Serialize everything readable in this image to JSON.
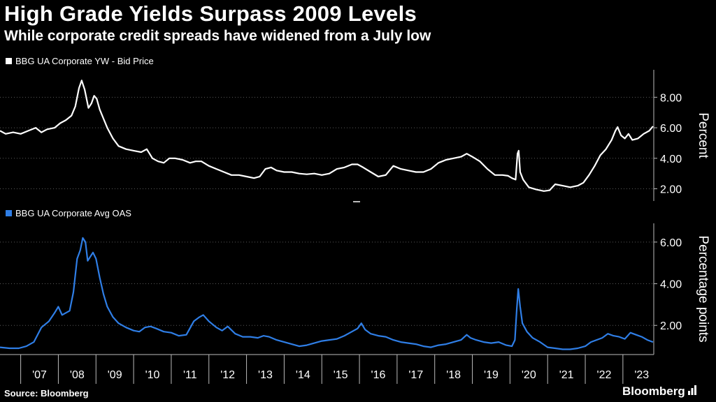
{
  "header": {
    "title": "High Grade Yields Surpass 2009 Levels",
    "subtitle": "While corporate credit spreads have widened from a July low"
  },
  "footer": {
    "source": "Source: Bloomberg",
    "brand": "Bloomberg"
  },
  "colors": {
    "background": "#000000",
    "series1": "#ffffff",
    "series2": "#2f7ee6",
    "grid": "#5a5a5a",
    "text": "#ffffff"
  },
  "chart_data": {
    "type": "line",
    "x_ticks": [
      "'07",
      "'08",
      "'09",
      "'10",
      "'11",
      "'12",
      "'13",
      "'14",
      "'15",
      "'16",
      "'17",
      "'18",
      "'19",
      "'20",
      "'21",
      "'22",
      "'23"
    ],
    "x_range": [
      2006.45,
      2023.82
    ],
    "panels": [
      {
        "legend": "BBG UA Corporate YW - Bid Price",
        "ylabel": "Percent",
        "ylim": [
          1.2,
          9.8
        ],
        "yticks": [
          2,
          4,
          6,
          8
        ],
        "ytick_labels": [
          "2.00",
          "4.00",
          "6.00",
          "8.00"
        ],
        "color": "#ffffff",
        "points": [
          [
            2006.45,
            5.8
          ],
          [
            2006.6,
            5.6
          ],
          [
            2006.8,
            5.7
          ],
          [
            2007.0,
            5.6
          ],
          [
            2007.2,
            5.8
          ],
          [
            2007.4,
            6.0
          ],
          [
            2007.55,
            5.7
          ],
          [
            2007.7,
            5.9
          ],
          [
            2007.9,
            6.0
          ],
          [
            2008.05,
            6.3
          ],
          [
            2008.2,
            6.5
          ],
          [
            2008.35,
            6.8
          ],
          [
            2008.45,
            7.4
          ],
          [
            2008.55,
            8.6
          ],
          [
            2008.62,
            9.1
          ],
          [
            2008.7,
            8.5
          ],
          [
            2008.8,
            7.3
          ],
          [
            2008.88,
            7.6
          ],
          [
            2008.95,
            8.1
          ],
          [
            2009.02,
            7.9
          ],
          [
            2009.1,
            7.2
          ],
          [
            2009.2,
            6.6
          ],
          [
            2009.3,
            6.0
          ],
          [
            2009.45,
            5.3
          ],
          [
            2009.6,
            4.8
          ],
          [
            2009.8,
            4.6
          ],
          [
            2010.0,
            4.5
          ],
          [
            2010.2,
            4.4
          ],
          [
            2010.35,
            4.6
          ],
          [
            2010.5,
            4.0
          ],
          [
            2010.65,
            3.8
          ],
          [
            2010.8,
            3.7
          ],
          [
            2010.95,
            4.0
          ],
          [
            2011.1,
            4.0
          ],
          [
            2011.3,
            3.9
          ],
          [
            2011.5,
            3.7
          ],
          [
            2011.65,
            3.8
          ],
          [
            2011.8,
            3.8
          ],
          [
            2012.0,
            3.5
          ],
          [
            2012.2,
            3.3
          ],
          [
            2012.4,
            3.1
          ],
          [
            2012.6,
            2.9
          ],
          [
            2012.8,
            2.9
          ],
          [
            2013.0,
            2.8
          ],
          [
            2013.2,
            2.7
          ],
          [
            2013.35,
            2.8
          ],
          [
            2013.5,
            3.3
          ],
          [
            2013.65,
            3.4
          ],
          [
            2013.8,
            3.2
          ],
          [
            2014.0,
            3.1
          ],
          [
            2014.2,
            3.1
          ],
          [
            2014.4,
            3.0
          ],
          [
            2014.6,
            2.95
          ],
          [
            2014.8,
            3.0
          ],
          [
            2015.0,
            2.9
          ],
          [
            2015.2,
            3.0
          ],
          [
            2015.4,
            3.3
          ],
          [
            2015.6,
            3.4
          ],
          [
            2015.8,
            3.6
          ],
          [
            2015.95,
            3.6
          ],
          [
            2016.1,
            3.4
          ],
          [
            2016.3,
            3.1
          ],
          [
            2016.5,
            2.8
          ],
          [
            2016.7,
            2.9
          ],
          [
            2016.9,
            3.5
          ],
          [
            2017.1,
            3.3
          ],
          [
            2017.3,
            3.2
          ],
          [
            2017.5,
            3.1
          ],
          [
            2017.7,
            3.1
          ],
          [
            2017.9,
            3.3
          ],
          [
            2018.1,
            3.7
          ],
          [
            2018.3,
            3.9
          ],
          [
            2018.5,
            4.0
          ],
          [
            2018.7,
            4.1
          ],
          [
            2018.85,
            4.3
          ],
          [
            2019.0,
            4.1
          ],
          [
            2019.2,
            3.8
          ],
          [
            2019.4,
            3.3
          ],
          [
            2019.6,
            2.9
          ],
          [
            2019.8,
            2.9
          ],
          [
            2019.95,
            2.85
          ],
          [
            2020.05,
            2.7
          ],
          [
            2020.15,
            2.6
          ],
          [
            2020.2,
            4.3
          ],
          [
            2020.23,
            4.5
          ],
          [
            2020.27,
            3.1
          ],
          [
            2020.35,
            2.6
          ],
          [
            2020.5,
            2.1
          ],
          [
            2020.7,
            1.95
          ],
          [
            2020.9,
            1.85
          ],
          [
            2021.05,
            1.9
          ],
          [
            2021.2,
            2.3
          ],
          [
            2021.4,
            2.2
          ],
          [
            2021.6,
            2.1
          ],
          [
            2021.8,
            2.2
          ],
          [
            2021.95,
            2.4
          ],
          [
            2022.1,
            2.9
          ],
          [
            2022.25,
            3.5
          ],
          [
            2022.4,
            4.2
          ],
          [
            2022.55,
            4.6
          ],
          [
            2022.7,
            5.2
          ],
          [
            2022.8,
            5.8
          ],
          [
            2022.86,
            6.05
          ],
          [
            2022.95,
            5.5
          ],
          [
            2023.05,
            5.3
          ],
          [
            2023.15,
            5.6
          ],
          [
            2023.25,
            5.2
          ],
          [
            2023.4,
            5.3
          ],
          [
            2023.55,
            5.6
          ],
          [
            2023.7,
            5.8
          ],
          [
            2023.8,
            6.1
          ]
        ]
      },
      {
        "legend": "BBG UA Corporate Avg OAS",
        "ylabel": "Percentage points",
        "ylim": [
          0.6,
          6.9
        ],
        "yticks": [
          2,
          4,
          6
        ],
        "ytick_labels": [
          "2.00",
          "4.00",
          "6.00"
        ],
        "color": "#2f7ee6",
        "points": [
          [
            2006.45,
            0.95
          ],
          [
            2006.7,
            0.9
          ],
          [
            2006.95,
            0.9
          ],
          [
            2007.15,
            1.0
          ],
          [
            2007.35,
            1.2
          ],
          [
            2007.55,
            1.9
          ],
          [
            2007.75,
            2.2
          ],
          [
            2007.9,
            2.6
          ],
          [
            2008.0,
            2.9
          ],
          [
            2008.1,
            2.5
          ],
          [
            2008.2,
            2.6
          ],
          [
            2008.3,
            2.7
          ],
          [
            2008.4,
            3.6
          ],
          [
            2008.5,
            5.2
          ],
          [
            2008.58,
            5.6
          ],
          [
            2008.65,
            6.2
          ],
          [
            2008.72,
            6.0
          ],
          [
            2008.78,
            5.1
          ],
          [
            2008.85,
            5.3
          ],
          [
            2008.92,
            5.5
          ],
          [
            2009.0,
            5.2
          ],
          [
            2009.1,
            4.3
          ],
          [
            2009.2,
            3.5
          ],
          [
            2009.3,
            2.9
          ],
          [
            2009.45,
            2.4
          ],
          [
            2009.6,
            2.1
          ],
          [
            2009.8,
            1.9
          ],
          [
            2010.0,
            1.75
          ],
          [
            2010.15,
            1.7
          ],
          [
            2010.3,
            1.9
          ],
          [
            2010.45,
            1.95
          ],
          [
            2010.6,
            1.85
          ],
          [
            2010.8,
            1.7
          ],
          [
            2011.0,
            1.65
          ],
          [
            2011.2,
            1.5
          ],
          [
            2011.4,
            1.55
          ],
          [
            2011.6,
            2.2
          ],
          [
            2011.75,
            2.4
          ],
          [
            2011.85,
            2.5
          ],
          [
            2012.0,
            2.2
          ],
          [
            2012.2,
            1.9
          ],
          [
            2012.35,
            1.75
          ],
          [
            2012.5,
            1.95
          ],
          [
            2012.7,
            1.6
          ],
          [
            2012.9,
            1.45
          ],
          [
            2013.1,
            1.45
          ],
          [
            2013.3,
            1.4
          ],
          [
            2013.45,
            1.5
          ],
          [
            2013.6,
            1.45
          ],
          [
            2013.8,
            1.3
          ],
          [
            2014.0,
            1.2
          ],
          [
            2014.2,
            1.1
          ],
          [
            2014.4,
            1.0
          ],
          [
            2014.6,
            1.05
          ],
          [
            2014.8,
            1.15
          ],
          [
            2015.0,
            1.25
          ],
          [
            2015.2,
            1.3
          ],
          [
            2015.4,
            1.35
          ],
          [
            2015.6,
            1.5
          ],
          [
            2015.8,
            1.7
          ],
          [
            2015.95,
            1.85
          ],
          [
            2016.05,
            2.1
          ],
          [
            2016.15,
            1.8
          ],
          [
            2016.3,
            1.6
          ],
          [
            2016.5,
            1.5
          ],
          [
            2016.7,
            1.45
          ],
          [
            2016.9,
            1.3
          ],
          [
            2017.1,
            1.2
          ],
          [
            2017.3,
            1.15
          ],
          [
            2017.5,
            1.1
          ],
          [
            2017.7,
            1.0
          ],
          [
            2017.9,
            0.95
          ],
          [
            2018.1,
            1.05
          ],
          [
            2018.3,
            1.1
          ],
          [
            2018.5,
            1.2
          ],
          [
            2018.7,
            1.3
          ],
          [
            2018.85,
            1.55
          ],
          [
            2018.95,
            1.4
          ],
          [
            2019.1,
            1.3
          ],
          [
            2019.3,
            1.2
          ],
          [
            2019.5,
            1.15
          ],
          [
            2019.7,
            1.2
          ],
          [
            2019.9,
            1.05
          ],
          [
            2020.05,
            1.0
          ],
          [
            2020.13,
            1.3
          ],
          [
            2020.18,
            2.8
          ],
          [
            2020.22,
            3.75
          ],
          [
            2020.27,
            2.9
          ],
          [
            2020.33,
            2.1
          ],
          [
            2020.45,
            1.7
          ],
          [
            2020.6,
            1.4
          ],
          [
            2020.8,
            1.2
          ],
          [
            2021.0,
            0.95
          ],
          [
            2021.2,
            0.9
          ],
          [
            2021.4,
            0.85
          ],
          [
            2021.6,
            0.85
          ],
          [
            2021.8,
            0.9
          ],
          [
            2022.0,
            1.0
          ],
          [
            2022.15,
            1.2
          ],
          [
            2022.3,
            1.3
          ],
          [
            2022.45,
            1.4
          ],
          [
            2022.6,
            1.6
          ],
          [
            2022.75,
            1.5
          ],
          [
            2022.9,
            1.45
          ],
          [
            2023.05,
            1.35
          ],
          [
            2023.2,
            1.65
          ],
          [
            2023.35,
            1.55
          ],
          [
            2023.5,
            1.45
          ],
          [
            2023.65,
            1.3
          ],
          [
            2023.8,
            1.2
          ]
        ]
      }
    ]
  }
}
